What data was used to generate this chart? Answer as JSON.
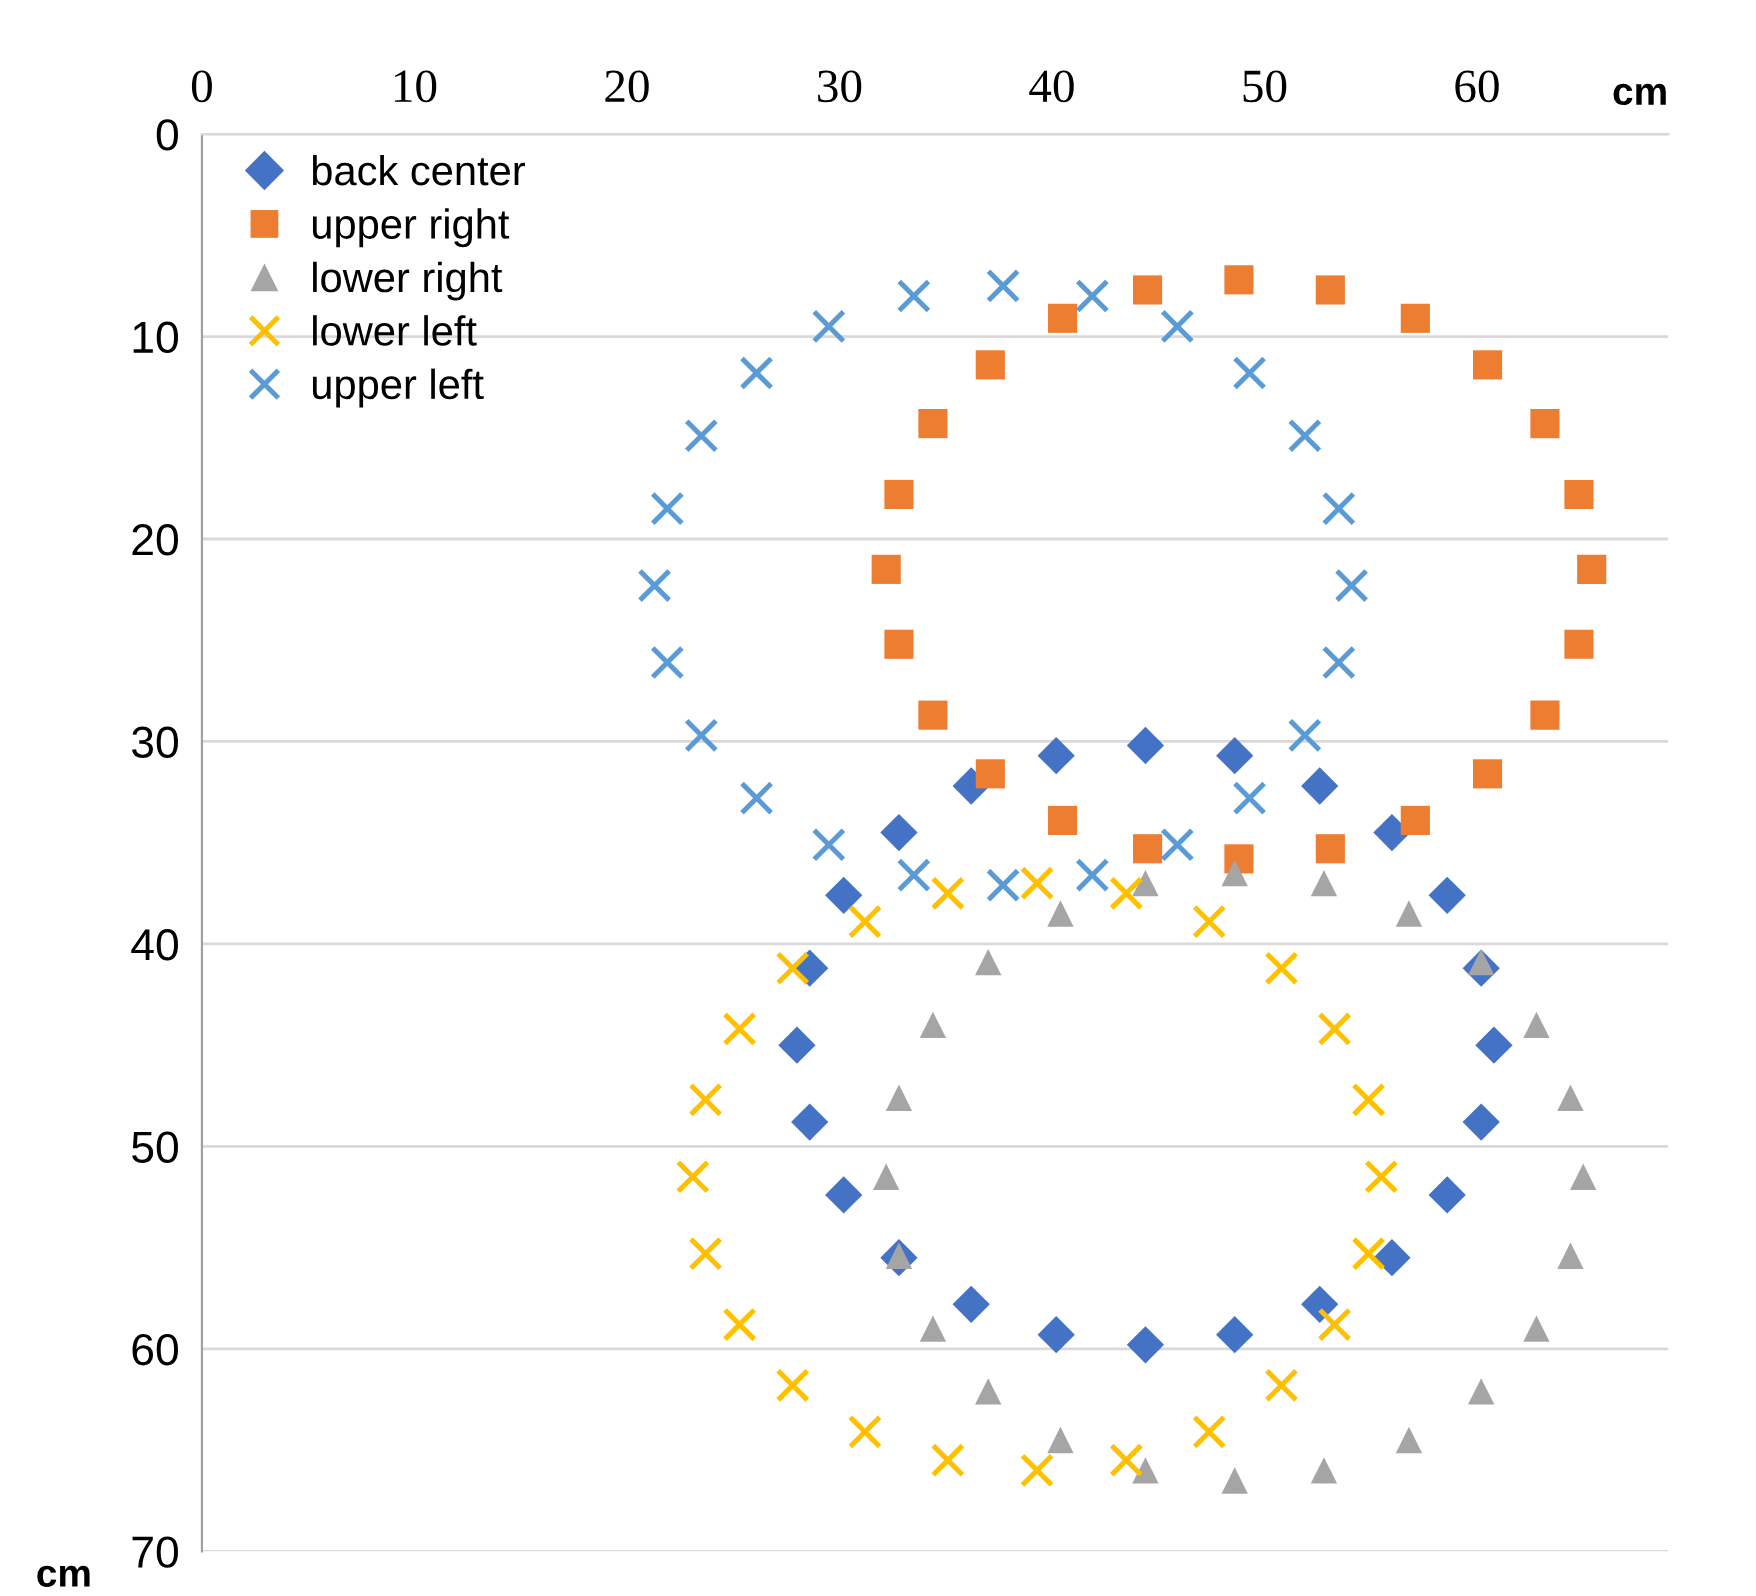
{
  "chart_data": {
    "type": "scatter",
    "xlabel": "cm",
    "ylabel": "cm",
    "xlim": [
      0,
      69
    ],
    "ylim": [
      70,
      0
    ],
    "xticks": [
      0,
      10,
      20,
      30,
      40,
      50,
      60
    ],
    "yticks": [
      0,
      10,
      20,
      30,
      40,
      50,
      60,
      70
    ],
    "grid": "y",
    "legend": "top left",
    "series": [
      {
        "name": "back center",
        "color": "#4472c4",
        "marker": "diamond",
        "x": [
          60.8,
          60.2,
          58.6,
          56.0,
          52.6,
          48.6,
          44.4,
          40.2,
          36.2,
          32.8,
          30.2,
          28.6,
          28.0,
          28.6,
          30.2,
          32.8,
          36.2,
          40.2,
          44.4,
          48.6,
          52.6,
          56.0,
          58.6,
          60.2
        ],
        "values": [
          45,
          48.8,
          52.4,
          55.5,
          57.8,
          59.3,
          59.8,
          59.3,
          57.8,
          55.5,
          52.4,
          48.8,
          45,
          41.2,
          37.6,
          34.5,
          32.2,
          30.7,
          30.2,
          30.7,
          32.2,
          34.5,
          37.6,
          41.2
        ]
      },
      {
        "name": "upper right",
        "color": "#ed7d31",
        "marker": "square",
        "x": [
          65.4,
          64.8,
          63.2,
          60.5,
          57.1,
          53.1,
          48.8,
          44.5,
          40.5,
          37.1,
          34.4,
          32.8,
          32.2,
          32.8,
          34.4,
          37.1,
          40.5,
          44.5,
          48.8,
          53.1,
          57.1,
          60.5,
          63.2,
          64.8
        ],
        "values": [
          21.5,
          25.2,
          28.7,
          31.6,
          33.9,
          35.3,
          35.8,
          35.3,
          33.9,
          31.6,
          28.7,
          25.2,
          21.5,
          17.8,
          14.3,
          11.4,
          9.1,
          7.7,
          7.2,
          7.7,
          9.1,
          11.4,
          14.3,
          17.8
        ]
      },
      {
        "name": "lower right",
        "color": "#a5a5a5",
        "marker": "triangle",
        "x": [
          65.0,
          64.4,
          62.8,
          60.2,
          56.8,
          52.8,
          48.6,
          44.4,
          40.4,
          37.0,
          34.4,
          32.8,
          32.2,
          32.8,
          34.4,
          37.0,
          40.4,
          44.4,
          48.6,
          52.8,
          56.8,
          60.2,
          62.8,
          64.4
        ],
        "values": [
          51.5,
          55.4,
          59.0,
          62.1,
          64.5,
          66.0,
          66.5,
          66.0,
          64.5,
          62.1,
          59.0,
          55.4,
          51.5,
          47.6,
          44.0,
          40.9,
          38.5,
          37.0,
          36.5,
          37.0,
          38.5,
          40.9,
          44.0,
          47.6
        ]
      },
      {
        "name": "lower left",
        "color": "#ffc000",
        "marker": "cross",
        "x": [
          55.5,
          54.9,
          53.3,
          50.8,
          47.4,
          43.5,
          39.3,
          35.1,
          31.2,
          27.8,
          25.3,
          23.7,
          23.1,
          23.7,
          25.3,
          27.8,
          31.2,
          35.1,
          39.3,
          43.5,
          47.4,
          50.8,
          53.3,
          54.9
        ],
        "values": [
          51.5,
          55.3,
          58.8,
          61.8,
          64.1,
          65.5,
          66.0,
          65.5,
          64.1,
          61.8,
          58.8,
          55.3,
          51.5,
          47.7,
          44.2,
          41.2,
          38.9,
          37.5,
          37.0,
          37.5,
          38.9,
          41.2,
          44.2,
          47.7
        ]
      },
      {
        "name": "upper left",
        "color": "#5b9bd5",
        "marker": "cross",
        "x": [
          54.1,
          53.5,
          51.9,
          49.3,
          45.9,
          41.9,
          37.7,
          33.5,
          29.5,
          26.1,
          23.5,
          21.9,
          21.3,
          21.9,
          23.5,
          26.1,
          29.5,
          33.5,
          37.7,
          41.9,
          45.9,
          49.3,
          51.9,
          53.5
        ],
        "values": [
          22.3,
          26.1,
          29.7,
          32.8,
          35.1,
          36.6,
          37.1,
          36.6,
          35.1,
          32.8,
          29.7,
          26.1,
          22.3,
          18.5,
          14.9,
          11.8,
          9.5,
          8.0,
          7.5,
          8.0,
          9.5,
          11.8,
          14.9,
          18.5
        ]
      }
    ]
  }
}
